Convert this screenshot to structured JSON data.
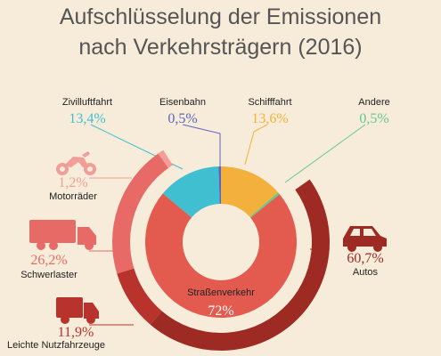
{
  "title_line1": "Aufschlüsselung der Emissionen",
  "title_line2": "nach Verkehrsträgern (2016)",
  "chart_data": {
    "type": "pie",
    "inner_ring": [
      {
        "label": "Straßenverkehr",
        "value": "72%",
        "pct": 72.0,
        "color": "#e35b4e"
      },
      {
        "label": "Zivilluftfahrt",
        "value": "13,4%",
        "pct": 13.4,
        "color": "#3fbfcf"
      },
      {
        "label": "Eisenbahn",
        "value": "0,5%",
        "pct": 0.5,
        "color": "#5d63c2"
      },
      {
        "label": "Schifffahrt",
        "value": "13,6%",
        "pct": 13.6,
        "color": "#f4b03c"
      },
      {
        "label": "Andere",
        "value": "0,5%",
        "pct": 0.5,
        "color": "#62c98d"
      }
    ],
    "road_breakdown": [
      {
        "label": "Autos",
        "value": "60,7%",
        "pct": 60.7,
        "color": "#9e2a24",
        "icon": "car-icon"
      },
      {
        "label": "Leichte Nutzfahrzeuge",
        "value": "11,9%",
        "pct": 11.9,
        "color": "#b8332c",
        "icon": "van-icon"
      },
      {
        "label": "Schwerlaster",
        "value": "26,2%",
        "pct": 26.2,
        "color": "#e86a66",
        "icon": "truck-icon"
      },
      {
        "label": "Motorräder",
        "value": "1,2%",
        "pct": 1.2,
        "color": "#f29d97",
        "icon": "motorcycle-icon"
      }
    ]
  }
}
